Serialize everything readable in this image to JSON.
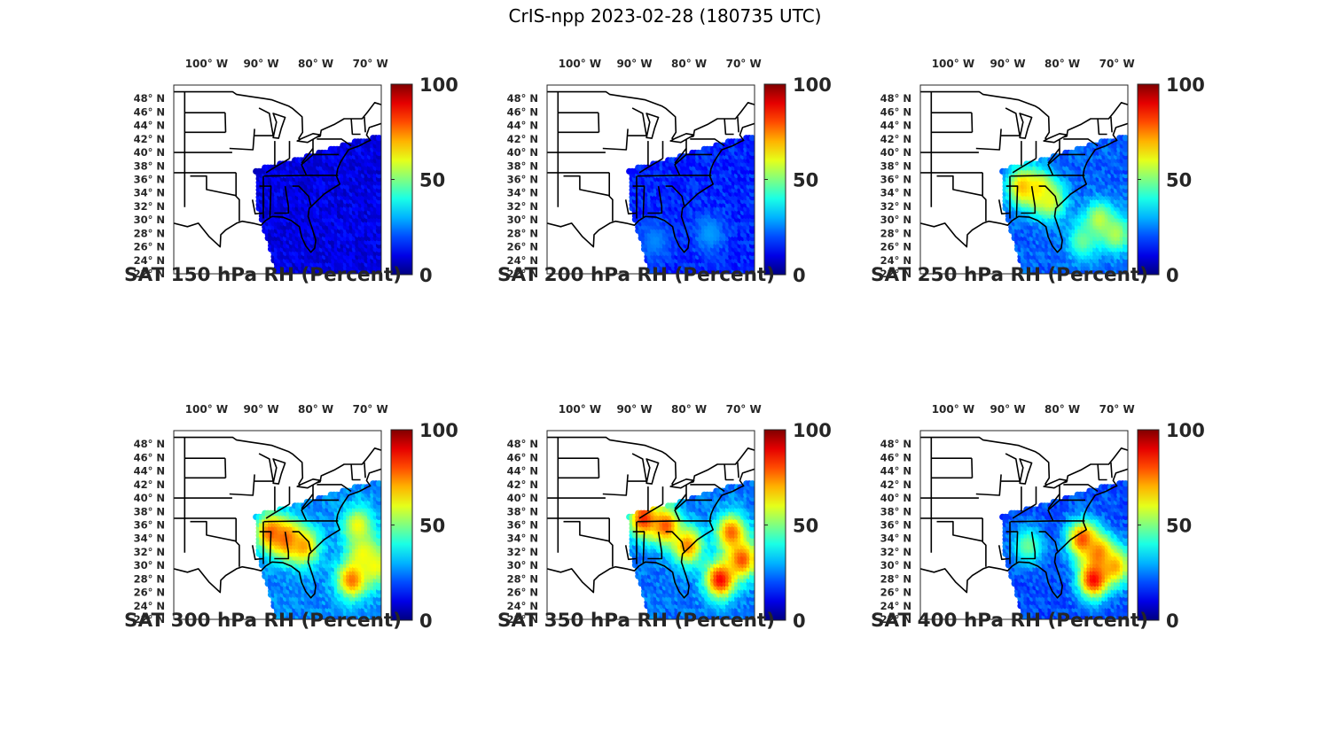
{
  "figure": {
    "title": "CrIS-npp 2023-02-28 (180735 UTC)"
  },
  "map_axes": {
    "lon_ticks": [
      {
        "lon": -100,
        "label": "100° W"
      },
      {
        "lon": -90,
        "label": "90° W"
      },
      {
        "lon": -80,
        "label": "80° W"
      },
      {
        "lon": -70,
        "label": "70° W"
      }
    ],
    "lat_ticks": [
      {
        "lat": 48,
        "label": "48° N"
      },
      {
        "lat": 46,
        "label": "46° N"
      },
      {
        "lat": 44,
        "label": "44° N"
      },
      {
        "lat": 42,
        "label": "42° N"
      },
      {
        "lat": 40,
        "label": "40° N"
      },
      {
        "lat": 38,
        "label": "38° N"
      },
      {
        "lat": 36,
        "label": "36° N"
      },
      {
        "lat": 34,
        "label": "34° N"
      },
      {
        "lat": 32,
        "label": "32° N"
      },
      {
        "lat": 30,
        "label": "30° N"
      },
      {
        "lat": 28,
        "label": "28° N"
      },
      {
        "lat": 26,
        "label": "26° N"
      },
      {
        "lat": 24,
        "label": "24° N"
      },
      {
        "lat": 22,
        "label": "22° N"
      }
    ],
    "lon_range": [
      -106,
      -68
    ],
    "lat_range": [
      22,
      50
    ]
  },
  "colorbar": {
    "colormap": "jet",
    "range": [
      0,
      100
    ],
    "ticks": [
      {
        "value": 0,
        "label": "0"
      },
      {
        "value": 50,
        "label": "50"
      },
      {
        "value": 100,
        "label": "100"
      }
    ]
  },
  "panels": [
    {
      "title": "SAT 150 hPa RH (Percent)",
      "pressure_hpa": 150,
      "base_rh": 10,
      "humid_regions": []
    },
    {
      "title": "SAT 200 hPa RH (Percent)",
      "pressure_hpa": 200,
      "base_rh": 16,
      "humid_regions": [
        {
          "lon": -76,
          "lat": 28,
          "rh": 28
        },
        {
          "lon": -86,
          "lat": 27,
          "rh": 26
        }
      ]
    },
    {
      "title": "SAT 250 hPa RH (Percent)",
      "pressure_hpa": 250,
      "base_rh": 22,
      "humid_regions": [
        {
          "lon": -87,
          "lat": 35,
          "rh": 70
        },
        {
          "lon": -84,
          "lat": 34.5,
          "rh": 68
        },
        {
          "lon": -82,
          "lat": 33,
          "rh": 60
        },
        {
          "lon": -73,
          "lat": 30,
          "rh": 58
        },
        {
          "lon": -70,
          "lat": 28,
          "rh": 55
        },
        {
          "lon": -76,
          "lat": 27,
          "rh": 48
        }
      ]
    },
    {
      "title": "SAT 300 hPa RH (Percent)",
      "pressure_hpa": 300,
      "base_rh": 26,
      "humid_regions": [
        {
          "lon": -88,
          "lat": 35,
          "rh": 78
        },
        {
          "lon": -85,
          "lat": 34,
          "rh": 80
        },
        {
          "lon": -82,
          "lat": 33,
          "rh": 72
        },
        {
          "lon": -72,
          "lat": 36,
          "rh": 62
        },
        {
          "lon": -71,
          "lat": 32,
          "rh": 60
        },
        {
          "lon": -73,
          "lat": 28,
          "rh": 78
        },
        {
          "lon": -69,
          "lat": 30,
          "rh": 62
        }
      ]
    },
    {
      "title": "SAT 350 hPa RH (Percent)",
      "pressure_hpa": 350,
      "base_rh": 24,
      "humid_regions": [
        {
          "lon": -88,
          "lat": 37,
          "rh": 85
        },
        {
          "lon": -84,
          "lat": 36,
          "rh": 80
        },
        {
          "lon": -80,
          "lat": 33,
          "rh": 75
        },
        {
          "lon": -72,
          "lat": 35,
          "rh": 78
        },
        {
          "lon": -70,
          "lat": 31,
          "rh": 80
        },
        {
          "lon": -74,
          "lat": 28,
          "rh": 88
        }
      ]
    },
    {
      "title": "SAT 400 hPa RH (Percent)",
      "pressure_hpa": 400,
      "base_rh": 20,
      "humid_regions": [
        {
          "lon": -76,
          "lat": 34,
          "rh": 82
        },
        {
          "lon": -73,
          "lat": 32,
          "rh": 75
        },
        {
          "lon": -70,
          "lat": 30,
          "rh": 70
        },
        {
          "lon": -74,
          "lat": 28,
          "rh": 88
        },
        {
          "lon": -86,
          "lat": 33,
          "rh": 48
        }
      ]
    }
  ]
}
